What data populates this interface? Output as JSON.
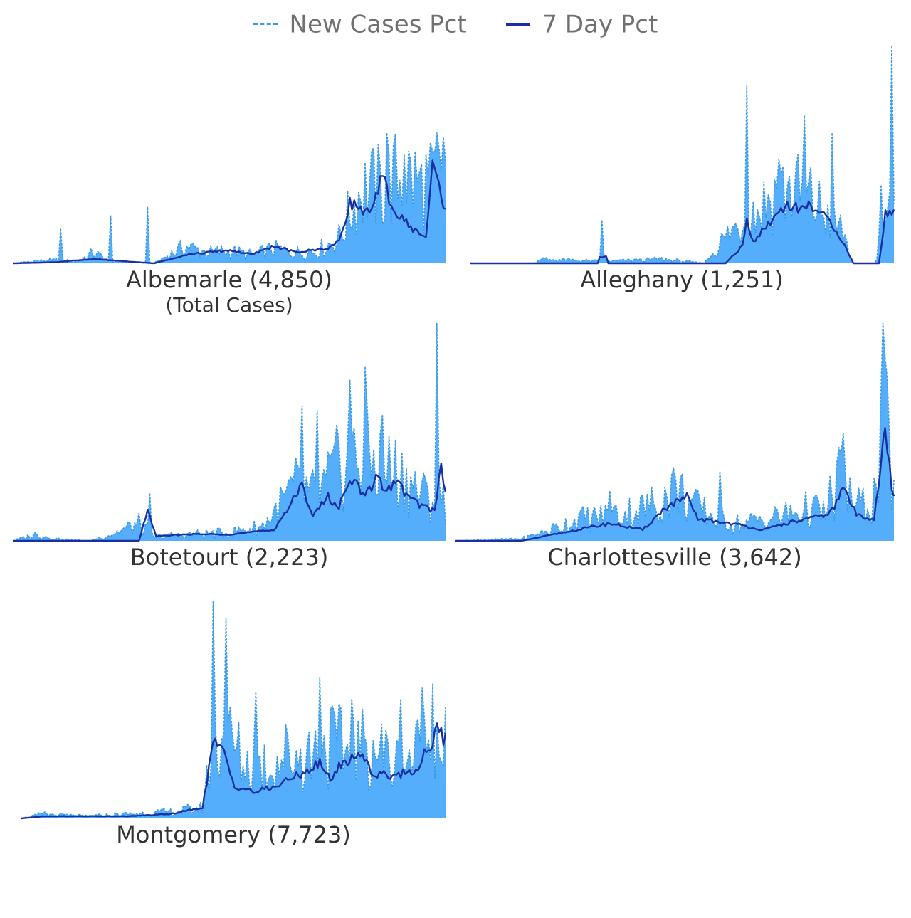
{
  "legend": {
    "items": [
      {
        "label": "New Cases Pct",
        "color": "#3a9ae0",
        "style": "dashed"
      },
      {
        "label": "7 Day Pct",
        "color": "#1a2fa0",
        "style": "solid"
      }
    ]
  },
  "colors": {
    "fill": "#55aefb",
    "new_cases_line": "#3a9ae0",
    "seven_day_line": "#1a2fa0",
    "title_text": "#333333"
  },
  "chart_data": [
    {
      "type": "area",
      "title": "Albemarle (4,850)",
      "subtitle": "(Total Cases)",
      "x_count": 200,
      "ylim": [
        0,
        1
      ],
      "new_peaks": [
        [
          0,
          0
        ],
        [
          10,
          0.01
        ],
        [
          20,
          0.015
        ],
        [
          30,
          0.01
        ],
        [
          37,
          0.05
        ],
        [
          45,
          0.01
        ],
        [
          55,
          0.005
        ],
        [
          65,
          0
        ],
        [
          70,
          0.03
        ],
        [
          80,
          0.08
        ],
        [
          90,
          0.05
        ],
        [
          100,
          0.06
        ],
        [
          110,
          0.04
        ],
        [
          120,
          0.07
        ],
        [
          130,
          0.05
        ],
        [
          140,
          0.06
        ],
        [
          150,
          0.12
        ],
        [
          160,
          0.35
        ],
        [
          170,
          0.35
        ],
        [
          180,
          0.42
        ],
        [
          190,
          0.35
        ],
        [
          200,
          0.42
        ]
      ],
      "seven_peaks": [
        [
          0,
          0
        ],
        [
          20,
          0.005
        ],
        [
          37,
          0.02
        ],
        [
          50,
          0.01
        ],
        [
          65,
          0
        ],
        [
          80,
          0.04
        ],
        [
          100,
          0.06
        ],
        [
          110,
          0.04
        ],
        [
          120,
          0.08
        ],
        [
          130,
          0.05
        ],
        [
          145,
          0.07
        ],
        [
          150,
          0.1
        ],
        [
          155,
          0.28
        ],
        [
          160,
          0.25
        ],
        [
          165,
          0.23
        ],
        [
          170,
          0.4
        ],
        [
          175,
          0.24
        ],
        [
          185,
          0.15
        ],
        [
          190,
          0.12
        ],
        [
          193,
          0.45
        ],
        [
          197,
          0.32
        ],
        [
          200,
          0.2
        ]
      ],
      "spikes": [
        [
          22,
          0.16
        ],
        [
          45,
          0.22
        ],
        [
          62,
          0.26
        ],
        [
          165,
          0.52
        ],
        [
          172,
          0.6
        ],
        [
          180,
          0.5
        ],
        [
          190,
          0.5
        ],
        [
          195,
          0.6
        ],
        [
          198,
          0.58
        ]
      ]
    },
    {
      "type": "area",
      "title": "Alleghany (1,251)",
      "x_count": 200,
      "ylim": [
        0,
        1
      ],
      "new_peaks": [
        [
          0,
          0
        ],
        [
          30,
          0
        ],
        [
          33,
          0.02
        ],
        [
          60,
          0.01
        ],
        [
          62,
          0.03
        ],
        [
          65,
          0.01
        ],
        [
          90,
          0.02
        ],
        [
          110,
          0
        ],
        [
          118,
          0.1
        ],
        [
          128,
          0.2
        ],
        [
          135,
          0.25
        ],
        [
          142,
          0.32
        ],
        [
          150,
          0.35
        ],
        [
          160,
          0.3
        ],
        [
          170,
          0.2
        ],
        [
          175,
          0.15
        ],
        [
          180,
          0
        ],
        [
          190,
          0
        ],
        [
          192,
          0.1
        ],
        [
          196,
          0.25
        ],
        [
          200,
          0.2
        ]
      ],
      "seven_peaks": [
        [
          0,
          0
        ],
        [
          30,
          0
        ],
        [
          60,
          0
        ],
        [
          61,
          0.03
        ],
        [
          64,
          0.03
        ],
        [
          65,
          0
        ],
        [
          120,
          0
        ],
        [
          128,
          0.08
        ],
        [
          130,
          0.2
        ],
        [
          133,
          0.1
        ],
        [
          140,
          0.18
        ],
        [
          148,
          0.27
        ],
        [
          155,
          0.25
        ],
        [
          160,
          0.27
        ],
        [
          170,
          0.18
        ],
        [
          175,
          0.1
        ],
        [
          180,
          0
        ],
        [
          192,
          0
        ],
        [
          195,
          0.23
        ],
        [
          200,
          0.23
        ]
      ],
      "spikes": [
        [
          62,
          0.2
        ],
        [
          130,
          0.82
        ],
        [
          145,
          0.48
        ],
        [
          157,
          0.68
        ],
        [
          170,
          0.6
        ],
        [
          193,
          0.36
        ],
        [
          198,
          1.0
        ]
      ]
    },
    {
      "type": "area",
      "title": "Botetourt (2,223)",
      "x_count": 200,
      "ylim": [
        0,
        1
      ],
      "new_peaks": [
        [
          0,
          0
        ],
        [
          10,
          0.03
        ],
        [
          20,
          0.01
        ],
        [
          35,
          0
        ],
        [
          45,
          0.03
        ],
        [
          58,
          0.08
        ],
        [
          65,
          0.02
        ],
        [
          80,
          0.03
        ],
        [
          100,
          0.04
        ],
        [
          115,
          0.07
        ],
        [
          130,
          0.25
        ],
        [
          140,
          0.2
        ],
        [
          150,
          0.35
        ],
        [
          160,
          0.4
        ],
        [
          170,
          0.35
        ],
        [
          180,
          0.3
        ],
        [
          190,
          0.2
        ],
        [
          200,
          0.2
        ]
      ],
      "seven_peaks": [
        [
          0,
          0
        ],
        [
          20,
          0
        ],
        [
          40,
          0
        ],
        [
          58,
          0
        ],
        [
          62,
          0.14
        ],
        [
          66,
          0.02
        ],
        [
          80,
          0.03
        ],
        [
          100,
          0.03
        ],
        [
          120,
          0.05
        ],
        [
          133,
          0.25
        ],
        [
          138,
          0.12
        ],
        [
          145,
          0.2
        ],
        [
          150,
          0.15
        ],
        [
          155,
          0.3
        ],
        [
          162,
          0.2
        ],
        [
          168,
          0.3
        ],
        [
          172,
          0.22
        ],
        [
          176,
          0.28
        ],
        [
          182,
          0.2
        ],
        [
          188,
          0.16
        ],
        [
          194,
          0.14
        ],
        [
          197,
          0.35
        ],
        [
          200,
          0.15
        ]
      ],
      "spikes": [
        [
          63,
          0.22
        ],
        [
          133,
          0.62
        ],
        [
          140,
          0.6
        ],
        [
          155,
          0.74
        ],
        [
          162,
          0.8
        ],
        [
          170,
          0.58
        ],
        [
          195,
          1.0
        ]
      ]
    },
    {
      "type": "area",
      "title": "Charlottesville (3,642)",
      "x_count": 200,
      "ylim": [
        0,
        1
      ],
      "new_peaks": [
        [
          0,
          0
        ],
        [
          30,
          0.01
        ],
        [
          40,
          0.04
        ],
        [
          55,
          0.1
        ],
        [
          70,
          0.12
        ],
        [
          85,
          0.15
        ],
        [
          95,
          0.2
        ],
        [
          100,
          0.25
        ],
        [
          110,
          0.15
        ],
        [
          120,
          0.1
        ],
        [
          130,
          0.08
        ],
        [
          140,
          0.1
        ],
        [
          150,
          0.12
        ],
        [
          160,
          0.15
        ],
        [
          170,
          0.12
        ],
        [
          175,
          0.35
        ],
        [
          182,
          0.15
        ],
        [
          190,
          0.2
        ],
        [
          195,
          0.55
        ],
        [
          198,
          0.3
        ],
        [
          200,
          0.15
        ]
      ],
      "seven_peaks": [
        [
          0,
          0
        ],
        [
          30,
          0
        ],
        [
          40,
          0.02
        ],
        [
          55,
          0.05
        ],
        [
          70,
          0.08
        ],
        [
          85,
          0.05
        ],
        [
          95,
          0.15
        ],
        [
          105,
          0.2
        ],
        [
          110,
          0.1
        ],
        [
          125,
          0.08
        ],
        [
          140,
          0.05
        ],
        [
          150,
          0.08
        ],
        [
          160,
          0.1
        ],
        [
          168,
          0.12
        ],
        [
          172,
          0.15
        ],
        [
          176,
          0.25
        ],
        [
          182,
          0.12
        ],
        [
          190,
          0.1
        ],
        [
          195,
          0.5
        ],
        [
          198,
          0.25
        ],
        [
          200,
          0.15
        ]
      ],
      "spikes": [
        [
          70,
          0.23
        ],
        [
          98,
          0.3
        ],
        [
          120,
          0.32
        ],
        [
          170,
          0.3
        ],
        [
          174,
          0.43
        ],
        [
          194,
          1.0
        ]
      ]
    },
    {
      "type": "area",
      "title": "Montgomery (7,723)",
      "x_count": 200,
      "ylim": [
        0,
        1
      ],
      "new_peaks": [
        [
          0,
          0
        ],
        [
          10,
          0.02
        ],
        [
          30,
          0.01
        ],
        [
          50,
          0.02
        ],
        [
          70,
          0.03
        ],
        [
          85,
          0.05
        ],
        [
          90,
          0.35
        ],
        [
          95,
          0.4
        ],
        [
          105,
          0.25
        ],
        [
          115,
          0.25
        ],
        [
          125,
          0.3
        ],
        [
          135,
          0.3
        ],
        [
          145,
          0.35
        ],
        [
          155,
          0.3
        ],
        [
          165,
          0.35
        ],
        [
          175,
          0.25
        ],
        [
          185,
          0.3
        ],
        [
          195,
          0.4
        ],
        [
          200,
          0.35
        ]
      ],
      "seven_peaks": [
        [
          0,
          0
        ],
        [
          10,
          0.01
        ],
        [
          30,
          0.01
        ],
        [
          50,
          0.01
        ],
        [
          70,
          0.02
        ],
        [
          85,
          0.05
        ],
        [
          90,
          0.35
        ],
        [
          95,
          0.3
        ],
        [
          100,
          0.15
        ],
        [
          110,
          0.12
        ],
        [
          120,
          0.15
        ],
        [
          130,
          0.2
        ],
        [
          140,
          0.25
        ],
        [
          145,
          0.18
        ],
        [
          150,
          0.25
        ],
        [
          160,
          0.3
        ],
        [
          165,
          0.2
        ],
        [
          175,
          0.2
        ],
        [
          185,
          0.22
        ],
        [
          195,
          0.4
        ],
        [
          200,
          0.35
        ]
      ],
      "spikes": [
        [
          90,
          1.0
        ],
        [
          96,
          0.92
        ],
        [
          110,
          0.58
        ],
        [
          140,
          0.65
        ],
        [
          155,
          0.55
        ],
        [
          178,
          0.55
        ],
        [
          188,
          0.6
        ],
        [
          193,
          0.62
        ]
      ]
    }
  ]
}
